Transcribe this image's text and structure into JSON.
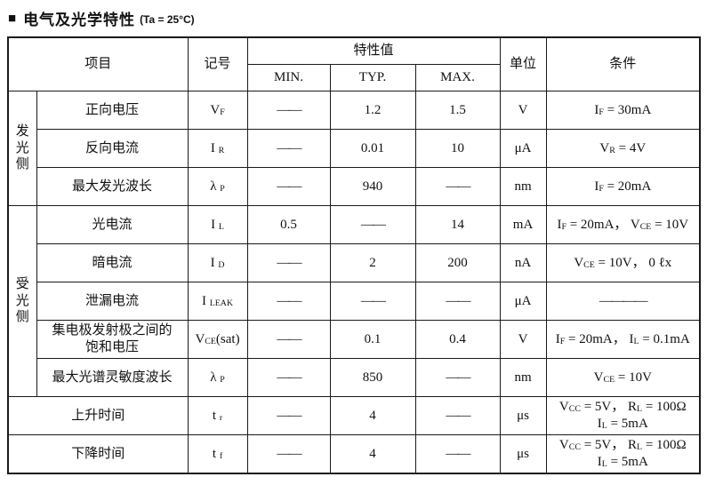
{
  "colors": {
    "text": "#111111",
    "border": "#1a1a1a",
    "background": "#ffffff"
  },
  "title": {
    "bullet": "■",
    "text": "电气及光学特性",
    "suffix": "(Ta = 25°C)"
  },
  "table": {
    "header": {
      "item": "项目",
      "symbol": "记号",
      "value_group": "特性值",
      "min": "MIN.",
      "typ": "TYP.",
      "max": "MAX.",
      "unit": "单位",
      "condition": "条件"
    },
    "groups": [
      {
        "label": "发光侧",
        "span": 3
      },
      {
        "label": "受光侧",
        "span": 5
      }
    ],
    "rows": [
      {
        "item": "正向电压",
        "symbol": "V~F~",
        "min": "——",
        "typ": "1.2",
        "max": "1.5",
        "unit": "V",
        "condition": "I~F~ = 30mA"
      },
      {
        "item": "反向电流",
        "symbol": "I ~R~",
        "min": "——",
        "typ": "0.01",
        "max": "10",
        "unit": "μA",
        "condition": "V~R~ = 4V"
      },
      {
        "item": "最大发光波长",
        "symbol": "λ ~P~",
        "min": "——",
        "typ": "940",
        "max": "——",
        "unit": "nm",
        "condition": "I~F~ = 20mA"
      },
      {
        "item": "光电流",
        "symbol": "I ~L~",
        "min": "0.5",
        "typ": "——",
        "max": "14",
        "unit": "mA",
        "condition": "I~F~ = 20mA， V~CE~ = 10V"
      },
      {
        "item": "暗电流",
        "symbol": "I ~D~",
        "min": "——",
        "typ": "2",
        "max": "200",
        "unit": "nA",
        "condition": "V~CE~ = 10V，  0 ℓx"
      },
      {
        "item": "泄漏电流",
        "symbol": "I ~LEAK~",
        "min": "——",
        "typ": "——",
        "max": "——",
        "unit": "μA",
        "condition": "————"
      },
      {
        "item": "集电极发射极之间的\n饱和电压",
        "symbol": "V~CE~(sat)",
        "min": "——",
        "typ": "0.1",
        "max": "0.4",
        "unit": "V",
        "condition": "I~F~ = 20mA，  I~L~ = 0.1mA"
      },
      {
        "item": "最大光谱灵敏度波长",
        "symbol": "λ ~P~",
        "min": "——",
        "typ": "850",
        "max": "——",
        "unit": "nm",
        "condition": "V~CE~ = 10V"
      },
      {
        "item": "上升时间",
        "symbol": "t ~r~",
        "min": "——",
        "typ": "4",
        "max": "——",
        "unit": "μs",
        "condition": "V~CC~ = 5V，  R~L~ = 100Ω\nI~L~ = 5mA",
        "full_width_item": true
      },
      {
        "item": "下降时间",
        "symbol": "t ~f~",
        "min": "——",
        "typ": "4",
        "max": "——",
        "unit": "μs",
        "condition": "V~CC~ = 5V，  R~L~ = 100Ω\nI~L~ = 5mA",
        "full_width_item": true
      }
    ]
  }
}
